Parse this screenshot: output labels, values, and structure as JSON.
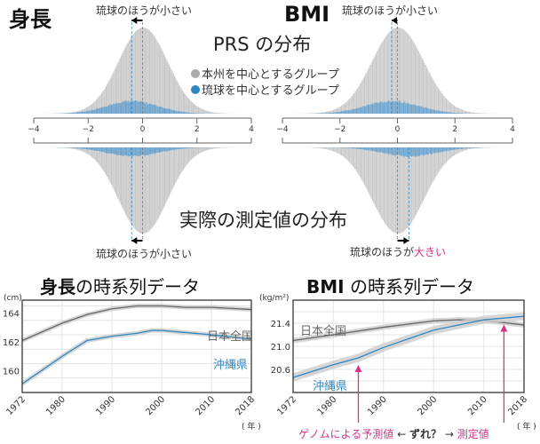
{
  "colors": {
    "honshu": "#c8c8c8",
    "ryukyu": "#3a8ac4",
    "japan_line": "#666666",
    "okinawa_line": "#2f86c2",
    "band": "#cccccc",
    "annotation": "#d6338a"
  },
  "top": {
    "height_title": "身長",
    "bmi_title": "BMI",
    "prs_title": "PRS の分布",
    "measured_title": "実際の測定値の分布",
    "legend": [
      {
        "label": "本州を中心とするグループ",
        "color": "#aaaaaa"
      },
      {
        "label": "琉球を中心とするグループ",
        "color": "#2f86c2"
      }
    ],
    "height_top_note": "琉球のほうが小さい",
    "height_bottom_note": "琉球のほうが小さい",
    "bmi_top_note": "琉球のほうが小さい",
    "bmi_bottom_note_a": "琉球のほうが",
    "bmi_bottom_note_b": "大きい"
  },
  "bottom": {
    "height_title_a": "身長",
    "height_title_b": "の時系列データ",
    "bmi_title_a": "BMI",
    "bmi_title_b": " の時系列データ",
    "year_unit": "( 年 )",
    "annotation_pred": "ゲノムによる予測値",
    "annotation_mid_a": "←",
    "annotation_mid_b": "ずれ？",
    "annotation_mid_c": "→",
    "annotation_meas": "測定値"
  },
  "chart_data": [
    {
      "type": "histogram",
      "title": "PRS の分布",
      "panel": "身長",
      "xlim": [
        -4,
        4
      ],
      "xticks": [
        -4,
        -2,
        0,
        2,
        4
      ],
      "series": [
        {
          "name": "本州を中心とするグループ",
          "mean": 0,
          "sd": 0.9
        },
        {
          "name": "琉球を中心とするグループ",
          "mean": -0.4,
          "sd": 0.95
        }
      ]
    },
    {
      "type": "histogram",
      "title": "実際の測定値の分布",
      "panel": "身長",
      "xlim": [
        -4,
        4
      ],
      "series": [
        {
          "name": "本州を中心とするグループ",
          "mean": 0,
          "sd": 0.9
        },
        {
          "name": "琉球を中心とするグループ",
          "mean": -0.4,
          "sd": 0.95
        }
      ]
    },
    {
      "type": "histogram",
      "title": "PRS の分布",
      "panel": "BMI",
      "xlim": [
        -4,
        4
      ],
      "xticks": [
        -4,
        -2,
        0,
        2,
        4
      ],
      "series": [
        {
          "name": "本州を中心とするグループ",
          "mean": 0,
          "sd": 0.9
        },
        {
          "name": "琉球を中心とするグループ",
          "mean": -0.2,
          "sd": 0.95
        }
      ]
    },
    {
      "type": "histogram",
      "title": "実際の測定値の分布",
      "panel": "BMI",
      "xlim": [
        -4,
        4
      ],
      "series": [
        {
          "name": "本州を中心とするグループ",
          "mean": 0,
          "sd": 0.9
        },
        {
          "name": "琉球を中心とするグループ",
          "mean": 0.4,
          "sd": 0.95
        }
      ]
    },
    {
      "type": "line",
      "title": "身長の時系列データ",
      "ylabel": "(cm)",
      "ylim": [
        158.5,
        164.9
      ],
      "xlim": [
        1972,
        2018
      ],
      "yticks": [
        "160",
        "162",
        "164"
      ],
      "xticks": [
        "1972",
        "1980",
        "1990",
        "2000",
        "2010",
        "2018"
      ],
      "series": [
        {
          "name": "日本全国",
          "x": [
            1972,
            1980,
            1985,
            1990,
            1995,
            2000,
            2005,
            2010,
            2018
          ],
          "y": [
            162.1,
            163.3,
            163.9,
            164.3,
            164.5,
            164.5,
            164.4,
            164.4,
            164.25
          ]
        },
        {
          "name": "沖縄県",
          "x": [
            1972,
            1980,
            1985,
            1990,
            1995,
            1998,
            2000,
            2005,
            2010,
            2018
          ],
          "y": [
            159.1,
            161.0,
            162.1,
            162.4,
            162.6,
            162.8,
            162.8,
            162.65,
            162.5,
            162.2
          ]
        }
      ]
    },
    {
      "type": "line",
      "title": "BMI の時系列データ",
      "ylabel": "(kg/m²)",
      "ylim": [
        20.2,
        21.8
      ],
      "xlim": [
        1972,
        2018
      ],
      "yticks": [
        "20.6",
        "21.0",
        "21.4"
      ],
      "xticks": [
        "1972",
        "1980",
        "1990",
        "2000",
        "2010",
        "2018"
      ],
      "series": [
        {
          "name": "日本全国",
          "x": [
            1972,
            1980,
            1990,
            2000,
            2005,
            2010,
            2018
          ],
          "y": [
            21.1,
            21.2,
            21.33,
            21.44,
            21.46,
            21.45,
            21.37
          ]
        },
        {
          "name": "沖縄県",
          "x": [
            1972,
            1980,
            1985,
            1990,
            2000,
            2010,
            2018
          ],
          "y": [
            20.46,
            20.68,
            20.8,
            20.98,
            21.28,
            21.46,
            21.52
          ]
        }
      ]
    }
  ]
}
